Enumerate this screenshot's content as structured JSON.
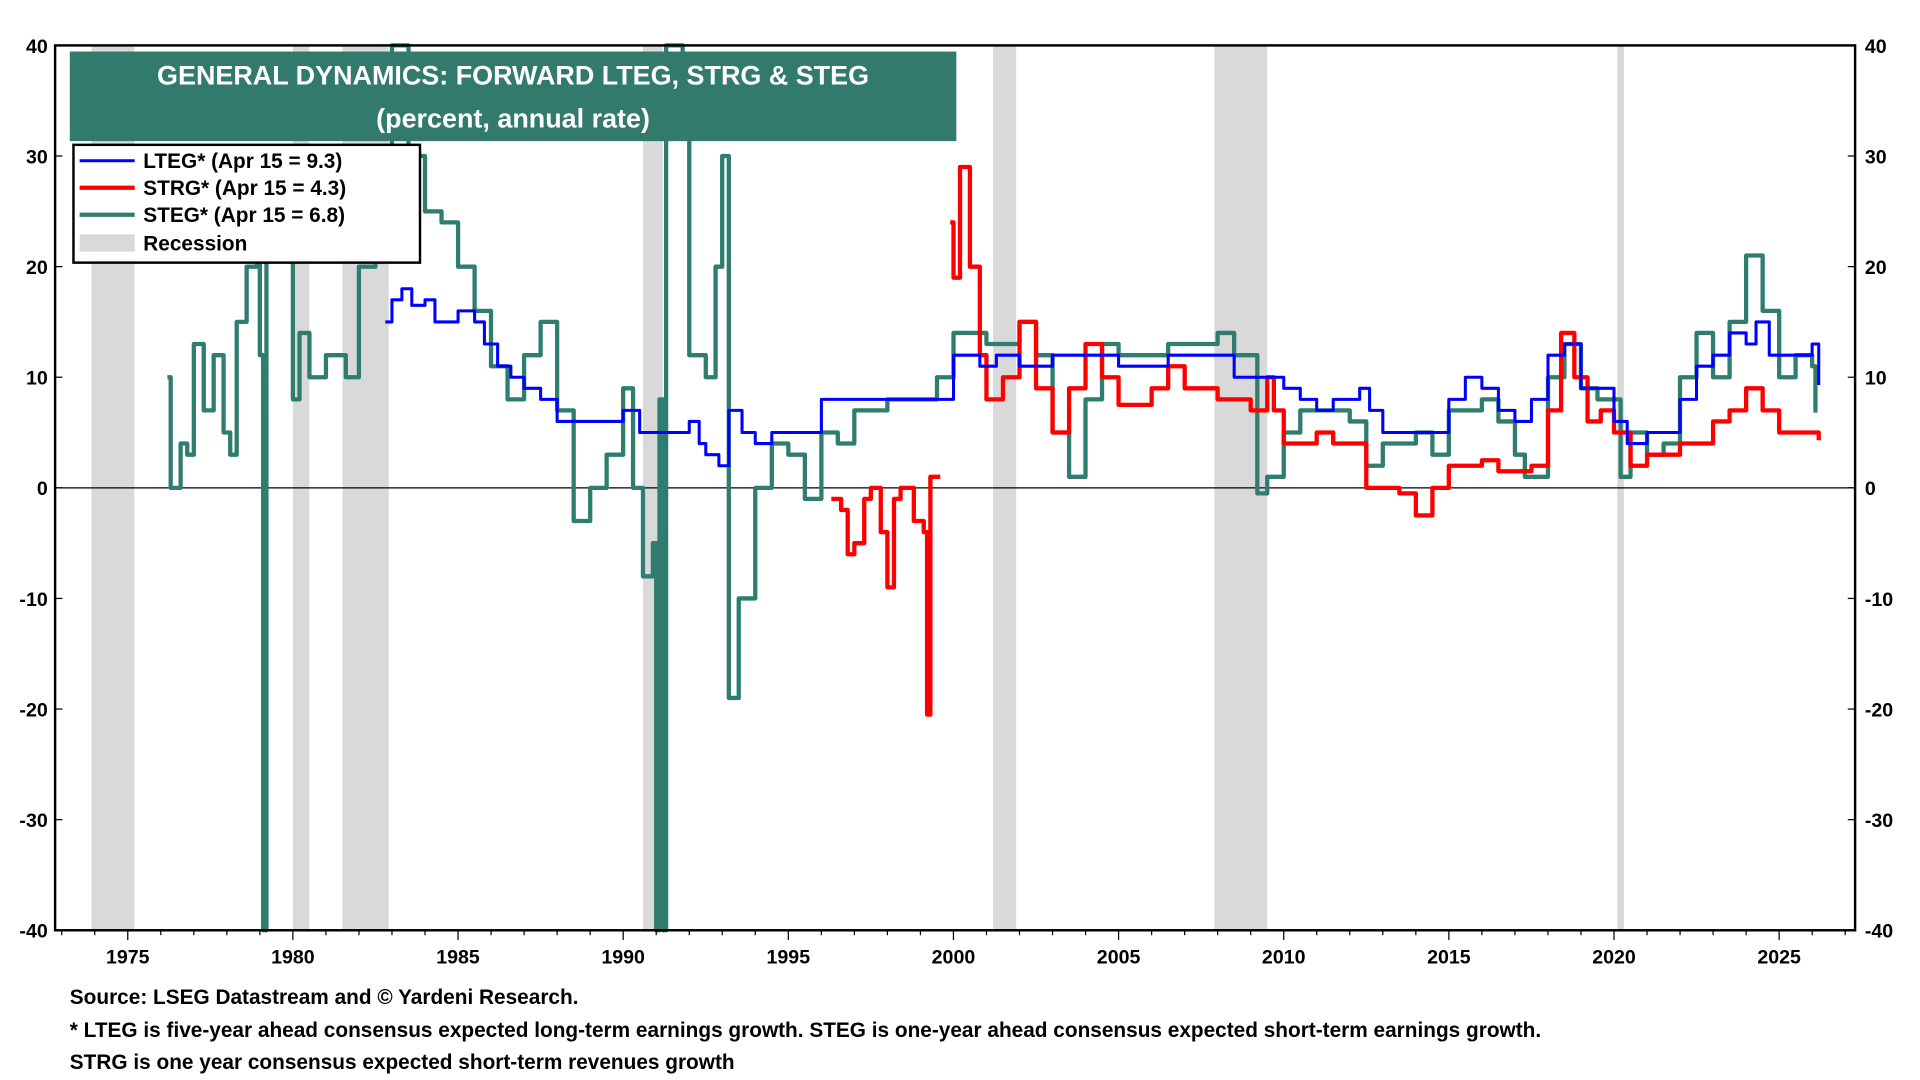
{
  "chart_data": {
    "type": "line",
    "title": "GENERAL DYNAMICS: FORWARD LTEG, STRG & STEG",
    "subtitle": "(percent, annual rate)",
    "xlim": [
      1972.8,
      2027.3
    ],
    "ylim": [
      -40,
      40
    ],
    "x_ticks": [
      1975,
      1980,
      1985,
      1990,
      1995,
      2000,
      2005,
      2010,
      2015,
      2020,
      2025
    ],
    "y_ticks": [
      40,
      30,
      20,
      10,
      0,
      -10,
      -20,
      -30,
      -40
    ],
    "grid": false,
    "zero_line": true,
    "legend_position": "top-left",
    "recession_label": "Recession",
    "recession_color": "#d9d9d9",
    "recessions": [
      [
        1973.9,
        1975.2
      ],
      [
        1980.0,
        1980.5
      ],
      [
        1981.5,
        1982.9
      ],
      [
        1990.6,
        1991.2
      ],
      [
        2001.2,
        2001.9
      ],
      [
        2007.9,
        2009.5
      ],
      [
        2020.1,
        2020.3
      ]
    ],
    "series": [
      {
        "name": "LTEG* (Apr 15 = 9.3)",
        "color": "#0000ff",
        "width": 2.5,
        "points": [
          [
            1982.8,
            15
          ],
          [
            1983.0,
            17
          ],
          [
            1983.3,
            18
          ],
          [
            1983.6,
            16.5
          ],
          [
            1984,
            17
          ],
          [
            1984.3,
            15
          ],
          [
            1985,
            16
          ],
          [
            1985.5,
            15
          ],
          [
            1985.8,
            13
          ],
          [
            1986.2,
            11
          ],
          [
            1986.6,
            10
          ],
          [
            1987,
            9
          ],
          [
            1987.5,
            8
          ],
          [
            1988,
            6
          ],
          [
            1989,
            6
          ],
          [
            1989.8,
            6
          ],
          [
            1990,
            7
          ],
          [
            1990.5,
            5
          ],
          [
            1991,
            5
          ],
          [
            1991.8,
            5
          ],
          [
            1992,
            6
          ],
          [
            1992.3,
            4
          ],
          [
            1992.5,
            3
          ],
          [
            1992.9,
            2
          ],
          [
            1993.2,
            7
          ],
          [
            1993.6,
            5
          ],
          [
            1994,
            4
          ],
          [
            1994.5,
            5
          ],
          [
            1995.5,
            5
          ],
          [
            1996,
            8
          ],
          [
            1997,
            8
          ],
          [
            1998,
            8
          ],
          [
            1999,
            8
          ],
          [
            1999.5,
            8
          ],
          [
            2000,
            12
          ],
          [
            2000.8,
            11
          ],
          [
            2001.3,
            12
          ],
          [
            2002,
            11
          ],
          [
            2003,
            12
          ],
          [
            2004,
            12
          ],
          [
            2005,
            11
          ],
          [
            2006,
            11
          ],
          [
            2006.5,
            12
          ],
          [
            2007,
            12
          ],
          [
            2008,
            12
          ],
          [
            2008.5,
            10
          ],
          [
            2009.5,
            10
          ],
          [
            2010,
            9
          ],
          [
            2010.5,
            8
          ],
          [
            2011,
            7
          ],
          [
            2011.5,
            8
          ],
          [
            2012,
            8
          ],
          [
            2012.3,
            9
          ],
          [
            2012.6,
            7
          ],
          [
            2013,
            5
          ],
          [
            2014,
            5
          ],
          [
            2014.5,
            5
          ],
          [
            2015,
            8
          ],
          [
            2015.5,
            10
          ],
          [
            2016,
            9
          ],
          [
            2016.5,
            7
          ],
          [
            2017,
            6
          ],
          [
            2017.5,
            8
          ],
          [
            2018,
            12
          ],
          [
            2018.5,
            13
          ],
          [
            2019,
            9
          ],
          [
            2019.5,
            9
          ],
          [
            2020,
            6
          ],
          [
            2020.4,
            4
          ],
          [
            2021,
            5
          ],
          [
            2021.5,
            5
          ],
          [
            2022,
            8
          ],
          [
            2022.5,
            11
          ],
          [
            2023,
            12
          ],
          [
            2023.5,
            14
          ],
          [
            2024,
            13
          ],
          [
            2024.3,
            15
          ],
          [
            2024.7,
            12
          ],
          [
            2025,
            12
          ],
          [
            2025.5,
            12
          ],
          [
            2026,
            13
          ],
          [
            2026.2,
            9.3
          ]
        ]
      },
      {
        "name": "STRG* (Apr 15 = 4.3)",
        "color": "#ff0000",
        "width": 3.5,
        "segments": [
          [
            [
              1996.3,
              -1
            ],
            [
              1996.6,
              -2
            ],
            [
              1996.8,
              -6
            ],
            [
              1997.0,
              -5
            ],
            [
              1997.3,
              -1
            ],
            [
              1997.5,
              0
            ],
            [
              1997.8,
              -4
            ],
            [
              1998.0,
              -9
            ],
            [
              1998.2,
              -1
            ],
            [
              1998.4,
              0
            ],
            [
              1998.8,
              -3
            ],
            [
              1999.1,
              -4
            ],
            [
              1999.2,
              -20.5
            ],
            [
              1999.3,
              1
            ],
            [
              1999.6,
              1
            ]
          ],
          [
            [
              1999.9,
              24
            ],
            [
              2000.0,
              19
            ],
            [
              2000.2,
              29
            ],
            [
              2000.5,
              20
            ],
            [
              2000.8,
              12
            ],
            [
              2001,
              8
            ],
            [
              2001.5,
              10
            ],
            [
              2002,
              15
            ],
            [
              2002.5,
              9
            ],
            [
              2003,
              5
            ],
            [
              2003.5,
              9
            ],
            [
              2004,
              13
            ],
            [
              2004.5,
              10
            ],
            [
              2005,
              7.5
            ],
            [
              2006,
              9
            ],
            [
              2006.5,
              11
            ],
            [
              2007,
              9
            ],
            [
              2008,
              8
            ],
            [
              2009,
              7
            ],
            [
              2009.5,
              10
            ],
            [
              2009.7,
              7
            ],
            [
              2010,
              4
            ],
            [
              2011,
              5
            ],
            [
              2011.5,
              4
            ],
            [
              2012,
              4
            ],
            [
              2012.5,
              0
            ],
            [
              2013.5,
              -0.5
            ],
            [
              2014,
              -2.5
            ],
            [
              2014.5,
              0
            ],
            [
              2015,
              2
            ],
            [
              2016,
              2.5
            ],
            [
              2016.5,
              1.5
            ],
            [
              2017.5,
              2
            ],
            [
              2018,
              7
            ],
            [
              2018.4,
              14
            ],
            [
              2018.8,
              10
            ],
            [
              2019.2,
              6
            ],
            [
              2019.6,
              7
            ],
            [
              2020,
              5
            ],
            [
              2020.5,
              2
            ],
            [
              2021,
              3
            ],
            [
              2022,
              4
            ],
            [
              2023,
              6
            ],
            [
              2023.5,
              7
            ],
            [
              2024,
              9
            ],
            [
              2024.5,
              7
            ],
            [
              2025,
              5
            ],
            [
              2026.2,
              4.3
            ]
          ]
        ]
      },
      {
        "name": "STEG* (Apr 15 = 6.8)",
        "color": "#2e7d6e",
        "width": 3.5,
        "points": [
          [
            1976.2,
            10
          ],
          [
            1976.3,
            0
          ],
          [
            1976.6,
            4
          ],
          [
            1976.8,
            3
          ],
          [
            1977,
            13
          ],
          [
            1977.3,
            7
          ],
          [
            1977.6,
            12
          ],
          [
            1977.9,
            5
          ],
          [
            1978.1,
            3
          ],
          [
            1978.3,
            15
          ],
          [
            1978.6,
            20
          ],
          [
            1978.9,
            22
          ],
          [
            1979.0,
            12
          ],
          [
            1979.1,
            -40
          ],
          [
            1979.2,
            22
          ],
          [
            1979.5,
            25
          ],
          [
            1980.0,
            8
          ],
          [
            1980.2,
            14
          ],
          [
            1980.5,
            10
          ],
          [
            1981,
            12
          ],
          [
            1981.6,
            10
          ],
          [
            1982,
            20
          ],
          [
            1982.5,
            30
          ],
          [
            1983,
            40
          ],
          [
            1983.5,
            30
          ],
          [
            1984,
            25
          ],
          [
            1984.5,
            24
          ],
          [
            1985,
            20
          ],
          [
            1985.5,
            16
          ],
          [
            1986,
            11
          ],
          [
            1986.5,
            8
          ],
          [
            1987,
            12
          ],
          [
            1987.5,
            15
          ],
          [
            1988,
            7
          ],
          [
            1988.5,
            -3
          ],
          [
            1989,
            0
          ],
          [
            1989.5,
            3
          ],
          [
            1990,
            9
          ],
          [
            1990.3,
            0
          ],
          [
            1990.6,
            -8
          ],
          [
            1990.9,
            -5
          ],
          [
            1991.0,
            -40
          ],
          [
            1991.1,
            8
          ],
          [
            1991.2,
            -40
          ],
          [
            1991.3,
            40
          ],
          [
            1991.8,
            32
          ],
          [
            1992,
            12
          ],
          [
            1992.5,
            10
          ],
          [
            1992.8,
            20
          ],
          [
            1993,
            30
          ],
          [
            1993.2,
            -19
          ],
          [
            1993.5,
            -10
          ],
          [
            1994,
            0
          ],
          [
            1994.5,
            4
          ],
          [
            1995,
            3
          ],
          [
            1995.5,
            -1
          ],
          [
            1996,
            5
          ],
          [
            1996.5,
            4
          ],
          [
            1997,
            7
          ],
          [
            1998,
            8
          ],
          [
            1999,
            8
          ],
          [
            1999.5,
            10
          ],
          [
            2000,
            14
          ],
          [
            2001,
            13
          ],
          [
            2002,
            15
          ],
          [
            2002.5,
            12
          ],
          [
            2003,
            5
          ],
          [
            2003.5,
            1
          ],
          [
            2004,
            8
          ],
          [
            2004.5,
            13
          ],
          [
            2005,
            12
          ],
          [
            2006,
            12
          ],
          [
            2006.5,
            13
          ],
          [
            2007,
            13
          ],
          [
            2008,
            14
          ],
          [
            2008.5,
            12
          ],
          [
            2009.2,
            -0.5
          ],
          [
            2009.5,
            1
          ],
          [
            2010,
            5
          ],
          [
            2010.5,
            7
          ],
          [
            2011,
            7
          ],
          [
            2012,
            6
          ],
          [
            2012.5,
            2
          ],
          [
            2013,
            4
          ],
          [
            2014,
            5
          ],
          [
            2014.5,
            3
          ],
          [
            2015,
            7
          ],
          [
            2016,
            8
          ],
          [
            2016.5,
            6
          ],
          [
            2017,
            3
          ],
          [
            2017.3,
            1
          ],
          [
            2018,
            10
          ],
          [
            2018.5,
            13
          ],
          [
            2019,
            9
          ],
          [
            2019.5,
            8
          ],
          [
            2020.2,
            1
          ],
          [
            2020.5,
            5
          ],
          [
            2021,
            3
          ],
          [
            2021.5,
            4
          ],
          [
            2022,
            10
          ],
          [
            2022.5,
            14
          ],
          [
            2023,
            10
          ],
          [
            2023.5,
            15
          ],
          [
            2024,
            21
          ],
          [
            2024.5,
            16
          ],
          [
            2025,
            10
          ],
          [
            2025.5,
            12
          ],
          [
            2026,
            11
          ],
          [
            2026.1,
            6.8
          ]
        ]
      }
    ]
  },
  "footer": {
    "source": "Source: LSEG Datastream and © Yardeni Research.",
    "note1": "* LTEG is five-year ahead consensus expected long-term earnings growth. STEG is one-year ahead consensus expected short-term earnings growth.",
    "note2": "STRG is one year consensus expected short-term revenues growth"
  }
}
